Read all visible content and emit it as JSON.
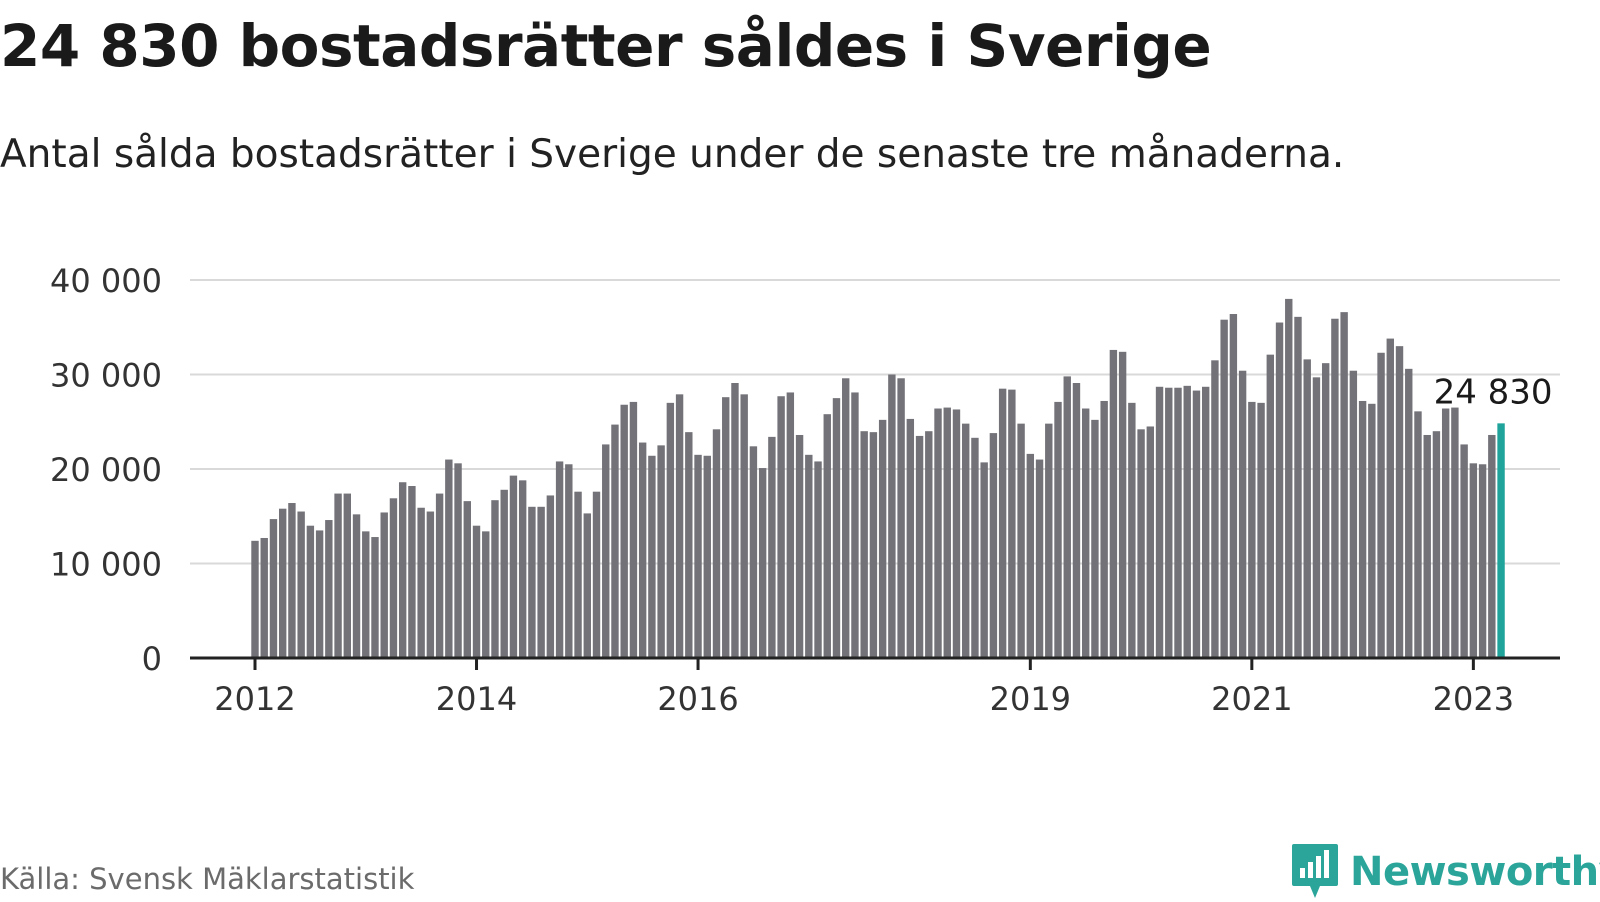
{
  "title": "24 830 bostadsrätter såldes i Sverige",
  "subtitle": "Antal sålda bostadsrätter i Sverige under de senaste tre månaderna.",
  "source": "Källa: Svensk Mäklarstatistik",
  "brand": {
    "name": "Newsworthy",
    "icon": "newsworthy-logo-icon"
  },
  "colors": {
    "bar": "#727278",
    "highlight": "#1fa39a",
    "grid": "#d9d9d9",
    "axis": "#222222",
    "brand": "#2ba59a"
  },
  "chart_data": {
    "type": "bar",
    "title": "24 830 bostadsrätter såldes i Sverige",
    "subtitle": "Antal sålda bostadsrätter i Sverige under de senaste tre månaderna.",
    "xlabel": "",
    "ylabel": "",
    "ylim": [
      0,
      40000
    ],
    "yticks": [
      0,
      10000,
      20000,
      30000,
      40000
    ],
    "ytick_labels": [
      "0",
      "10 000",
      "20 000",
      "30 000",
      "40 000"
    ],
    "xticks": [
      {
        "label": "2012",
        "date": "2012-01"
      },
      {
        "label": "2014",
        "date": "2014-01"
      },
      {
        "label": "2016",
        "date": "2016-01"
      },
      {
        "label": "2019",
        "date": "2019-01"
      },
      {
        "label": "2021",
        "date": "2021-01"
      },
      {
        "label": "2023",
        "date": "2023-01"
      }
    ],
    "grid": true,
    "start": "2012-01",
    "frequency": "monthly",
    "values": [
      12400,
      12700,
      14700,
      15800,
      16400,
      15500,
      14000,
      13500,
      14600,
      17400,
      17400,
      15200,
      13400,
      12800,
      15400,
      16900,
      18600,
      18200,
      15900,
      15500,
      17400,
      21000,
      20600,
      16600,
      14000,
      13400,
      16700,
      17800,
      19300,
      18800,
      16000,
      16000,
      17200,
      20800,
      20500,
      17600,
      15300,
      17600,
      22600,
      24700,
      26800,
      27100,
      22800,
      21400,
      22500,
      27000,
      27900,
      23900,
      21500,
      21400,
      24200,
      27600,
      29100,
      27900,
      22400,
      20100,
      23400,
      27700,
      28100,
      23600,
      21500,
      20800,
      25800,
      27500,
      29600,
      28100,
      24000,
      23900,
      25200,
      30000,
      29600,
      25300,
      23500,
      24000,
      26400,
      26500,
      26300,
      24800,
      23300,
      20700,
      23800,
      28500,
      28400,
      24800,
      21600,
      21000,
      24800,
      27100,
      29800,
      29100,
      26400,
      25200,
      27200,
      32600,
      32400,
      27000,
      24200,
      24500,
      28700,
      28600,
      28600,
      28800,
      28300,
      28700,
      31500,
      35800,
      36400,
      30400,
      27100,
      27000,
      32100,
      35500,
      38000,
      36100,
      31600,
      29700,
      31200,
      35900,
      36600,
      30400,
      27200,
      26900,
      32300,
      33800,
      33000,
      30600,
      26100,
      23600,
      24000,
      26400,
      26500,
      22600,
      20600,
      20500,
      23600,
      24830
    ],
    "highlight": {
      "date": "2023-04",
      "value": 24830,
      "label": "24 830"
    }
  }
}
